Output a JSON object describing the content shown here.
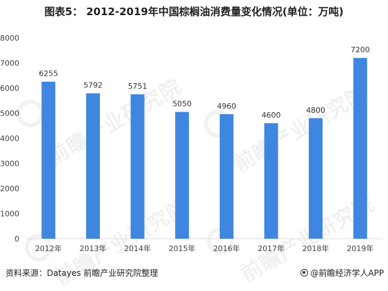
{
  "title": "图表5：  2012-2019年中国棕榈油消费量变化情况(单位：万吨)",
  "watermark": "前瞻产业研究院",
  "footer": {
    "source": "资料来源：Datayes 前瞻产业研究院整理",
    "app": "@前瞻经济学人APP"
  },
  "colors": {
    "bar": "#3f86e0",
    "axis": "#d9d9d9",
    "text": "#404040"
  },
  "chart_data": {
    "type": "bar",
    "categories": [
      "2012年",
      "2013年",
      "2014年",
      "2015年",
      "2016年",
      "2017年",
      "2018年",
      "2019年"
    ],
    "values": [
      6255,
      5792,
      5751,
      5050,
      4960,
      4600,
      4800,
      7200
    ],
    "value_labels": [
      "6255",
      "5792",
      "5751",
      "5050",
      "4960",
      "4600",
      "4800",
      "7200"
    ],
    "yticks": [
      "0",
      "1000",
      "2000",
      "3000",
      "4000",
      "5000",
      "6000",
      "7000",
      "8000"
    ],
    "ylim": [
      0,
      8000
    ],
    "title": "",
    "xlabel": "",
    "ylabel": "",
    "grid": false,
    "legend": "none"
  }
}
